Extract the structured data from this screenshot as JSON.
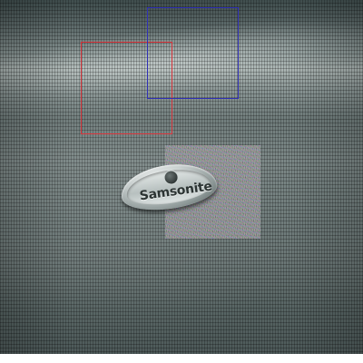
{
  "image": {
    "subject": "luggage-shell-closeup",
    "badge": {
      "brand_text": "Samsonite"
    },
    "annotations": {
      "red_box_color": "#d9343b",
      "blue_box_color": "#2f2fb5"
    },
    "colors": {
      "shell_base": "#6f7c7b",
      "shell_highlight": "#a9b3b1"
    }
  }
}
